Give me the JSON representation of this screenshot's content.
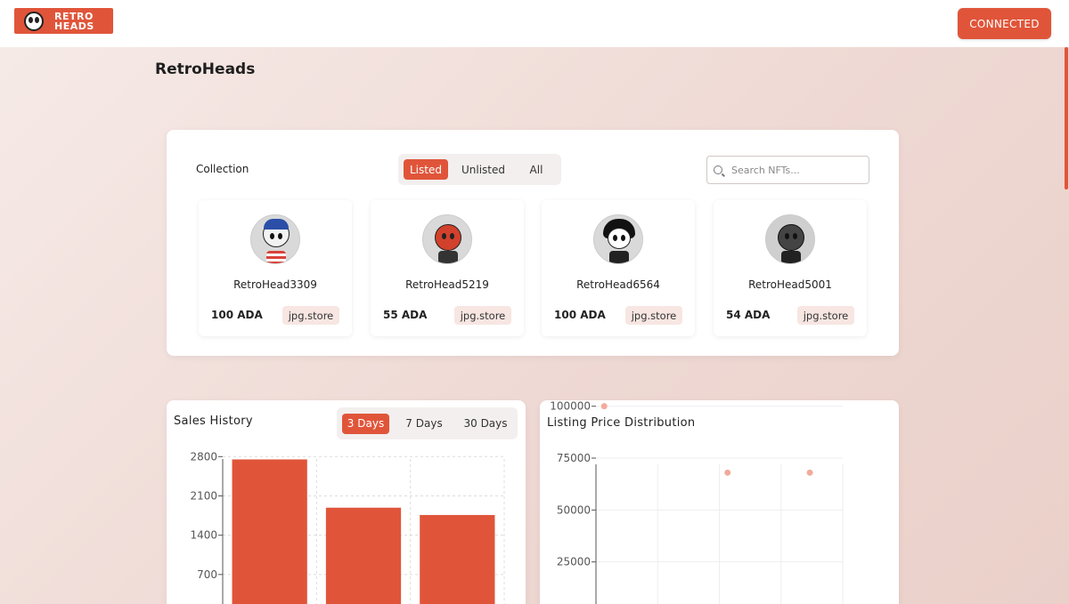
{
  "header": {
    "logo_line1": "RETRO",
    "logo_line2": "HEADS",
    "connect_label": "CONNECTED"
  },
  "page": {
    "title": "RetroHeads"
  },
  "collection": {
    "label": "Collection",
    "filters": [
      "Listed",
      "Unlisted",
      "All"
    ],
    "active_filter": "Listed",
    "search_placeholder": "Search NFTs...",
    "search_value": "",
    "nfts": [
      {
        "name": "RetroHead3309",
        "price": "100 ADA",
        "market": "jpg.store"
      },
      {
        "name": "RetroHead5219",
        "price": "55 ADA",
        "market": "jpg.store"
      },
      {
        "name": "RetroHead6564",
        "price": "100 ADA",
        "market": "jpg.store"
      },
      {
        "name": "RetroHead5001",
        "price": "54 ADA",
        "market": "jpg.store"
      }
    ]
  },
  "sales": {
    "title": "Sales History",
    "ranges": [
      "3 Days",
      "7 Days",
      "30 Days"
    ],
    "active_range": "3 Days"
  },
  "distribution": {
    "title": "Listing Price Distribution"
  },
  "colors": {
    "accent": "#e0553a",
    "scatter": "#f2aa9b"
  },
  "chart_data": [
    {
      "type": "bar",
      "title": "Sales History",
      "categories": [
        "",
        "",
        ""
      ],
      "values": [
        2750,
        1890,
        1760
      ],
      "yticks": [
        700,
        1400,
        2100,
        2800
      ],
      "ylim": [
        0,
        2900
      ],
      "grid": true
    },
    {
      "type": "scatter",
      "title": "Listing Price Distribution",
      "x": [
        0,
        3,
        5
      ],
      "y": [
        100000,
        68000,
        68000
      ],
      "yticks": [
        25000,
        50000,
        75000,
        100000
      ],
      "ylim": [
        0,
        102000
      ],
      "xlim": [
        -0.2,
        5.8
      ],
      "grid": true
    }
  ]
}
